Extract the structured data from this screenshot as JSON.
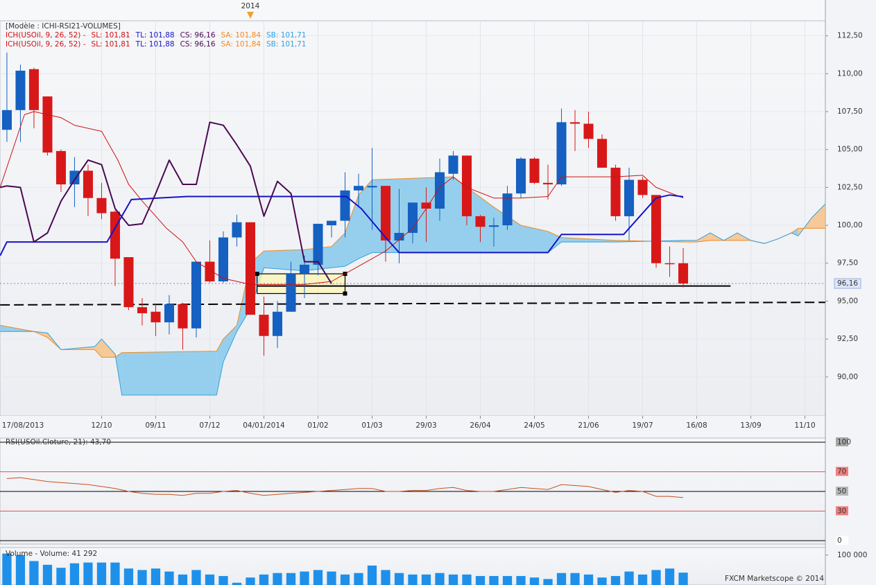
{
  "chart_data": [
    {
      "type": "candlestick",
      "model": "[Modèle : ICHI-RSI21-VOLUMES]",
      "indicator": "ICH(USOil, 9, 26, 52) -",
      "indicator_color": "#d01010",
      "year_marker": {
        "x": 18,
        "label": "2014",
        "color": "#f0a030"
      },
      "xlim": [
        -0.51,
        60.51
      ],
      "ylim": [
        87.43,
        113.49
      ],
      "xticks": [
        {
          "value": -1,
          "label": "17/08/2013"
        },
        {
          "value": 7,
          "label": "12/10"
        },
        {
          "value": 11,
          "label": "09/11"
        },
        {
          "value": 15,
          "label": "07/12"
        },
        {
          "value": 19,
          "label": "04/01/2014"
        },
        {
          "value": 23,
          "label": "01/02"
        },
        {
          "value": 27,
          "label": "01/03"
        },
        {
          "value": 31,
          "label": "29/03"
        },
        {
          "value": 35,
          "label": "26/04"
        },
        {
          "value": 39,
          "label": "24/05"
        },
        {
          "value": 43,
          "label": "21/06"
        },
        {
          "value": 47,
          "label": "19/07"
        },
        {
          "value": 51,
          "label": "16/08"
        },
        {
          "value": 55,
          "label": "13/09"
        },
        {
          "value": 59,
          "label": "11/10"
        }
      ],
      "yticks": [
        {
          "value": 90,
          "label": "90,00"
        },
        {
          "value": 92.5,
          "label": "92,50"
        },
        {
          "value": 95,
          "label": "95,00"
        },
        {
          "value": 97.5,
          "label": "97,50"
        },
        {
          "value": 100,
          "label": "100,00"
        },
        {
          "value": 102.5,
          "label": "102,50"
        },
        {
          "value": 105,
          "label": "105,00"
        },
        {
          "value": 107.5,
          "label": "107,50"
        },
        {
          "value": 110,
          "label": "110,00"
        },
        {
          "value": 112.5,
          "label": "112,50"
        }
      ],
      "grid": true,
      "up_color": "#1560c0",
      "down_color": "#d81818",
      "x": [
        0,
        1,
        2,
        3,
        4,
        5,
        6,
        7,
        8,
        9,
        10,
        11,
        12,
        13,
        14,
        15,
        16,
        17,
        18,
        19,
        20,
        21,
        22,
        23,
        24,
        25,
        26,
        27,
        28,
        29,
        30,
        31,
        32,
        33,
        34,
        35,
        36,
        37,
        38,
        39,
        40,
        41,
        42,
        43,
        44,
        45,
        46,
        47,
        48,
        49,
        50
      ],
      "open": [
        106.3,
        107.6,
        110.3,
        108.5,
        104.9,
        102.7,
        103.6,
        101.8,
        100.9,
        97.9,
        94.6,
        94.3,
        93.6,
        94.8,
        93.2,
        97.6,
        96.3,
        99.2,
        100.2,
        94.1,
        92.7,
        94.3,
        96.8,
        97.4,
        100.0,
        100.3,
        102.3,
        102.5,
        102.6,
        99.0,
        99.5,
        101.5,
        101.1,
        103.4,
        104.6,
        100.6,
        99.9,
        100.0,
        102.1,
        104.4,
        102.8,
        102.7,
        106.8,
        106.7,
        105.7,
        103.8,
        100.6,
        103.0,
        102.0,
        97.5,
        97.5
      ],
      "high": [
        111.4,
        110.6,
        110.4,
        108.5,
        105.0,
        104.5,
        104.0,
        102.8,
        101.0,
        97.9,
        95.2,
        94.8,
        95.4,
        94.9,
        97.6,
        99.0,
        99.6,
        100.7,
        100.2,
        95.3,
        95.0,
        97.6,
        98.0,
        100.1,
        100.3,
        103.5,
        103.4,
        105.1,
        102.6,
        102.4,
        101.5,
        102.5,
        104.4,
        104.9,
        104.6,
        100.7,
        100.5,
        102.6,
        104.5,
        104.5,
        104.0,
        107.7,
        107.6,
        107.5,
        106.0,
        104.0,
        103.8,
        103.2,
        102.0,
        98.6,
        98.5
      ],
      "low": [
        105.5,
        105.5,
        106.4,
        104.6,
        102.2,
        101.2,
        100.6,
        100.4,
        96.0,
        94.4,
        93.4,
        92.7,
        92.8,
        91.8,
        92.6,
        96.2,
        96.2,
        98.6,
        94.1,
        91.4,
        91.9,
        94.3,
        95.2,
        96.7,
        99.2,
        99.2,
        101.2,
        99.7,
        97.6,
        97.5,
        98.8,
        98.9,
        100.3,
        103.0,
        100.0,
        98.9,
        98.6,
        99.7,
        101.8,
        102.7,
        101.7,
        102.6,
        104.9,
        105.1,
        103.8,
        100.3,
        99.0,
        101.8,
        97.2,
        96.6,
        95.9
      ],
      "close": [
        107.6,
        110.2,
        107.6,
        104.8,
        102.7,
        103.6,
        101.8,
        100.8,
        97.8,
        94.6,
        94.2,
        93.6,
        94.8,
        93.2,
        97.6,
        96.3,
        99.2,
        100.2,
        94.1,
        92.7,
        94.3,
        96.8,
        97.4,
        100.1,
        100.3,
        102.3,
        102.6,
        102.6,
        99.0,
        99.5,
        101.5,
        101.1,
        103.5,
        104.6,
        100.6,
        99.9,
        100.0,
        102.1,
        104.4,
        102.8,
        102.7,
        106.8,
        106.7,
        105.7,
        103.8,
        100.6,
        103.0,
        102.0,
        97.5,
        97.45,
        96.16
      ],
      "cloud": {
        "x": [
          -0.5,
          2,
          3,
          4,
          6.5,
          7,
          8,
          8.5,
          15.5,
          16,
          17,
          18,
          19,
          22,
          24,
          25,
          26,
          27,
          33,
          34,
          36,
          38,
          40,
          41,
          45,
          50,
          51,
          52,
          53,
          54,
          55,
          56,
          57,
          58,
          58.5,
          59.5,
          60.5
        ],
        "sa": {
          "legend": "SA: 101,84",
          "color": "#f08a20",
          "fill": "#8ccbec",
          "values": [
            93.4,
            93.0,
            92.6,
            91.8,
            91.8,
            91.3,
            91.3,
            91.6,
            91.7,
            92.5,
            93.4,
            97.5,
            98.3,
            98.4,
            98.6,
            99.5,
            102.0,
            103.0,
            103.2,
            102.5,
            101.2,
            100.0,
            99.6,
            99.2,
            99.0,
            98.9,
            98.9,
            99.0,
            99.0,
            99.0,
            99.0,
            98.8,
            99.1,
            99.5,
            99.8,
            99.8,
            99.8
          ]
        },
        "sb": {
          "legend": "SB: 101,71",
          "color": "#30a0e0",
          "fill": "#f6c48e",
          "values": [
            93.0,
            93.0,
            92.9,
            91.8,
            92.0,
            92.5,
            91.5,
            88.8,
            88.8,
            91.0,
            93.0,
            94.5,
            97.2,
            97.0,
            97.2,
            97.3,
            97.8,
            98.2,
            98.2,
            98.2,
            98.2,
            98.2,
            98.2,
            98.9,
            98.9,
            99.0,
            99.0,
            99.5,
            99.0,
            99.5,
            99.0,
            98.8,
            99.1,
            99.5,
            99.3,
            100.5,
            101.4
          ]
        }
      },
      "lines": [
        {
          "legend": "SL: 101,81",
          "color": "#d01010",
          "width": 1,
          "x": [
            -0.5,
            1.3,
            2,
            4,
            5,
            7,
            8.2,
            9,
            10,
            11.8,
            13,
            14,
            16,
            18,
            22,
            24,
            26,
            28,
            30,
            31,
            32,
            33,
            34,
            36,
            38,
            40,
            41,
            45,
            47,
            48,
            50
          ],
          "values": [
            102.5,
            107.3,
            107.5,
            107.1,
            106.6,
            106.2,
            104.3,
            102.7,
            101.6,
            99.8,
            98.9,
            97.6,
            96.5,
            96.1,
            96.1,
            96.3,
            97.3,
            98.3,
            99.8,
            101.1,
            102.5,
            103.2,
            102.5,
            101.8,
            101.8,
            101.9,
            103.2,
            103.2,
            103.3,
            102.5,
            101.81
          ]
        },
        {
          "legend": "TL: 101,88",
          "color": "#1414c8",
          "width": 2,
          "x": [
            -0.5,
            0,
            7.4,
            9.2,
            13.3,
            25.1,
            26.2,
            27.9,
            29,
            40,
            41,
            45.6,
            48,
            49,
            50
          ],
          "values": [
            98.0,
            98.9,
            98.9,
            101.7,
            101.9,
            101.9,
            101.1,
            99.3,
            98.2,
            98.2,
            99.4,
            99.4,
            101.8,
            102.0,
            101.88
          ]
        },
        {
          "legend": "CS: 96,16",
          "color": "#4a0850",
          "width": 2,
          "x": [
            -0.5,
            0,
            1,
            2,
            3,
            4,
            5,
            6,
            7,
            8,
            9,
            10,
            11,
            12,
            13,
            14,
            15,
            16,
            17,
            18,
            19,
            20,
            21,
            22,
            23,
            24
          ],
          "values": [
            102.5,
            102.6,
            102.5,
            98.9,
            99.5,
            101.6,
            103.0,
            104.3,
            104.0,
            101.1,
            100.0,
            100.1,
            102.1,
            104.3,
            102.7,
            102.7,
            106.8,
            106.6,
            105.3,
            103.9,
            100.6,
            102.9,
            102.1,
            97.6,
            97.6,
            96.16
          ]
        }
      ],
      "levels": [
        {
          "x": [
            -0.5,
            60.5
          ],
          "values": [
            94.75,
            94.92
          ],
          "style": "dashed",
          "color": "#000000"
        },
        {
          "x": [
            18.5,
            53.5
          ],
          "values": [
            96.0,
            96.0
          ],
          "style": "solid",
          "color": "#000000"
        }
      ],
      "rectangle": {
        "x": [
          18.5,
          25
        ],
        "values": [
          96.8,
          95.5
        ],
        "color": "#fff6b0"
      },
      "last_price": {
        "value": 96.16,
        "label": "96,16",
        "color": "#8080e0"
      }
    },
    {
      "type": "line",
      "title": "RSI(USOil.Cloture, 21): 43,70",
      "title_color": "#c04020",
      "color": "#c8501e",
      "xlim": [
        -0.51,
        60.51
      ],
      "ylim": [
        -3.5,
        104.2
      ],
      "yticks": [
        0,
        30,
        50,
        70,
        100
      ],
      "tick_colors": [
        "#000000",
        "#e05050",
        "#000000",
        "#e05050",
        "#000000"
      ],
      "tick_label_backgrounds": [
        "#ffffff",
        "#f08080",
        "#b8b8b8",
        "#f08080",
        "#a8a8a8"
      ],
      "x": [
        0,
        1,
        2,
        3,
        4,
        5,
        6,
        7,
        8,
        9,
        10,
        11,
        12,
        13,
        14,
        15,
        16,
        17,
        18,
        19,
        20,
        21,
        22,
        23,
        24,
        25,
        26,
        27,
        28,
        29,
        30,
        31,
        32,
        33,
        34,
        35,
        36,
        37,
        38,
        39,
        40,
        41,
        42,
        43,
        44,
        45,
        46,
        47,
        48,
        49,
        50
      ],
      "values": [
        63,
        64,
        62,
        60,
        59,
        58,
        57,
        55,
        53,
        50,
        48,
        47,
        47,
        46,
        48,
        48,
        50,
        51,
        48,
        46,
        47,
        48,
        49,
        50,
        51,
        52,
        53,
        53,
        50,
        50,
        51,
        51,
        53,
        54,
        51,
        50,
        50,
        52,
        54,
        53,
        52,
        57,
        56,
        55,
        52,
        49,
        51,
        50,
        45,
        45,
        43.7
      ]
    },
    {
      "type": "bar",
      "title": "Volume - Volume: 41 292",
      "title_color": "#1050a0",
      "color": "#1e90ea",
      "footer": "FXCM Marketscope © 2014",
      "xlim": [
        -0.51,
        60.51
      ],
      "ylim": [
        0,
        125000
      ],
      "yticks": [
        {
          "value": 100000,
          "label": "100 000"
        }
      ],
      "x": [
        0,
        1,
        2,
        3,
        4,
        5,
        6,
        7,
        8,
        9,
        10,
        11,
        12,
        13,
        14,
        15,
        16,
        17,
        18,
        19,
        20,
        21,
        22,
        23,
        24,
        25,
        26,
        27,
        28,
        29,
        30,
        31,
        32,
        33,
        34,
        35,
        36,
        37,
        38,
        39,
        40,
        41,
        42,
        43,
        44,
        45,
        46,
        47,
        48,
        49,
        50
      ],
      "values": [
        105000,
        100000,
        80000,
        67500,
        57500,
        72500,
        75000,
        75000,
        75000,
        55000,
        50000,
        55000,
        45000,
        35000,
        50000,
        35000,
        30000,
        7500,
        25000,
        35000,
        40000,
        40000,
        45000,
        50000,
        45000,
        35000,
        40000,
        65000,
        50000,
        40000,
        35000,
        35000,
        40000,
        35000,
        35000,
        30000,
        30000,
        30000,
        30000,
        25000,
        20000,
        40000,
        40000,
        35000,
        25000,
        30000,
        45000,
        35000,
        50000,
        55000,
        41292
      ]
    }
  ]
}
